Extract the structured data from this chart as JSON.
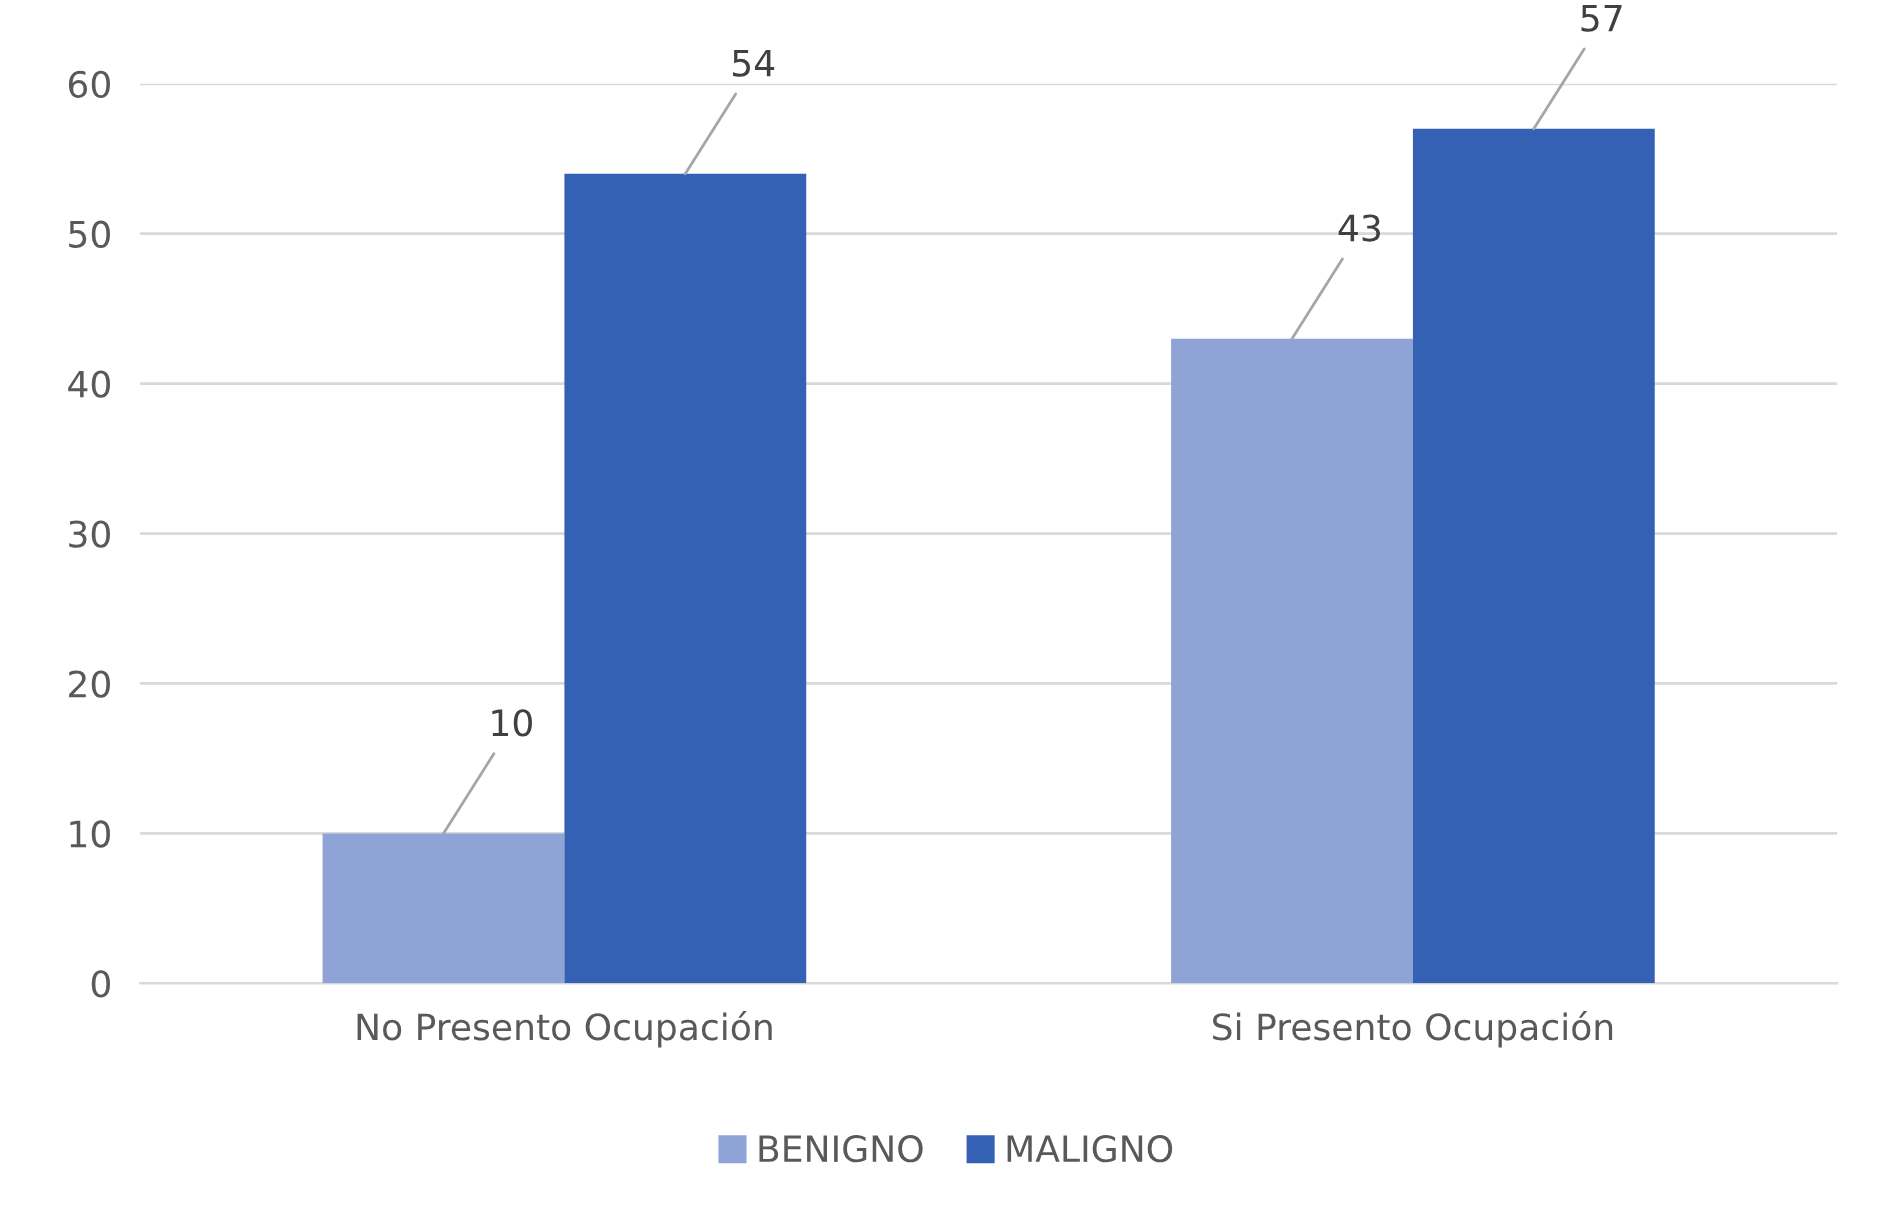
{
  "chart_data": {
    "type": "bar",
    "categories": [
      "No Presento Ocupación",
      "Si Presento Ocupación"
    ],
    "series": [
      {
        "name": "BENIGNO",
        "color": "#8fa3d6",
        "values": [
          10,
          43
        ]
      },
      {
        "name": "MALIGNO",
        "color": "#3561b5",
        "values": [
          54,
          57
        ]
      }
    ],
    "ylim": [
      0,
      60
    ],
    "yticks": [
      0,
      10,
      20,
      30,
      40,
      50,
      60
    ],
    "grid": "y",
    "legend": "bottom",
    "data_labels": true
  }
}
